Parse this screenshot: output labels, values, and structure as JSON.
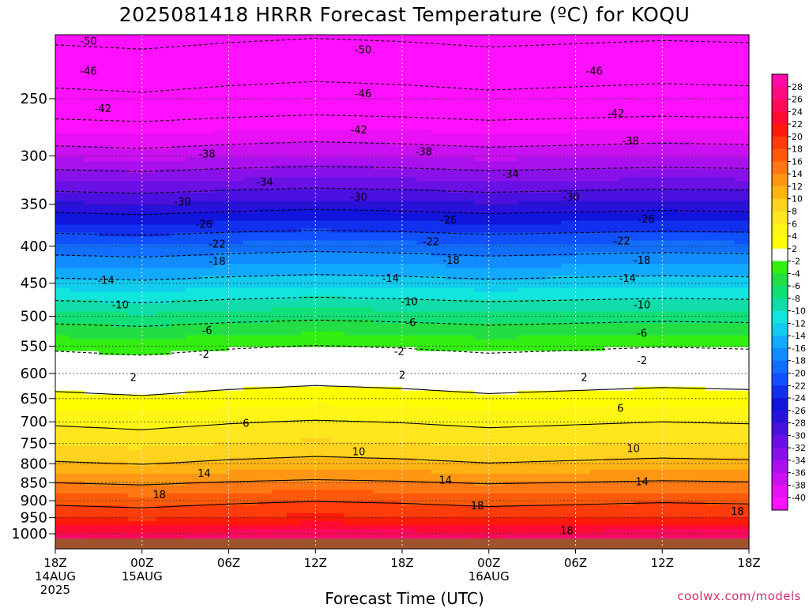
{
  "chart_data": {
    "type": "heatmap",
    "title": "2025081418 HRRR Forecast Temperature (ºC) for KOQU",
    "xlabel": "Forecast Time (UTC)",
    "ylabel": "",
    "y_axis": {
      "scale": "log",
      "inverted": true,
      "ticks": [
        250,
        300,
        350,
        400,
        450,
        500,
        550,
        600,
        650,
        700,
        750,
        800,
        850,
        900,
        950,
        1000
      ],
      "range": [
        1025,
        200
      ]
    },
    "x_axis": {
      "range_hours": [
        0,
        48
      ],
      "ticks": [
        {
          "hour": 0,
          "label": "18Z",
          "sub": [
            "14AUG",
            "2025"
          ]
        },
        {
          "hour": 6,
          "label": "00Z",
          "sub": [
            "15AUG"
          ]
        },
        {
          "hour": 12,
          "label": "06Z",
          "sub": []
        },
        {
          "hour": 18,
          "label": "12Z",
          "sub": []
        },
        {
          "hour": 24,
          "label": "18Z",
          "sub": []
        },
        {
          "hour": 30,
          "label": "00Z",
          "sub": [
            "16AUG"
          ]
        },
        {
          "hour": 36,
          "label": "06Z",
          "sub": []
        },
        {
          "hour": 42,
          "label": "12Z",
          "sub": []
        },
        {
          "hour": 48,
          "label": "18Z",
          "sub": []
        }
      ]
    },
    "colorbar": {
      "labels": [
        "28",
        "26",
        "24",
        "22",
        "20",
        "18",
        "16",
        "14",
        "12",
        "10",
        "8",
        "6",
        "4",
        "2",
        "-2",
        "-4",
        "-6",
        "-8",
        "-10",
        "-12",
        "-14",
        "-16",
        "-18",
        "-20",
        "-22",
        "-24",
        "-26",
        "-28",
        "-30",
        "-32",
        "-34",
        "-36",
        "-38",
        "-40"
      ],
      "colors": [
        "#ff0aa8",
        "#ff0a82",
        "#ff0a5a",
        "#ff0a32",
        "#ff1a0a",
        "#ff3c0a",
        "#ff5a0a",
        "#ff7814",
        "#ff9614",
        "#ffb414",
        "#ffd21e",
        "#ffe61e",
        "#fff514",
        "#ffff00",
        "#ffffff",
        "#33ee11",
        "#22dd44",
        "#11e077",
        "#11ddaa",
        "#11e5dd",
        "#11ccee",
        "#11aaff",
        "#118cff",
        "#116eff",
        "#1150ff",
        "#1130ee",
        "#1114dd",
        "#2810dd",
        "#4a10e0",
        "#6a10e5",
        "#8a10ea",
        "#aa10ee",
        "#ca10f2",
        "#ea10f6",
        "#ff10ff"
      ]
    },
    "levels": [
      1000,
      950,
      900,
      850,
      800,
      750,
      700,
      650,
      600,
      550,
      500,
      450,
      400,
      350,
      300,
      250,
      200
    ],
    "temperature_profile_c": [
      24.6,
      19.9,
      17.3,
      14.0,
      10.3,
      7.8,
      5.6,
      2.7,
      0.2,
      -2.5,
      -7.2,
      -13.1,
      -19.5,
      -27.6,
      -36.5,
      -45.0,
      -51.5
    ],
    "time_shift_hours": [
      0,
      6,
      12,
      18,
      24,
      30,
      36,
      42,
      48
    ],
    "time_shift_c": [
      0.0,
      -0.4,
      0.2,
      0.6,
      0.3,
      -0.2,
      0.1,
      0.4,
      0.2
    ],
    "contours": [
      {
        "value": -50,
        "labels": [
          {
            "hour": 2.3,
            "p": 208
          },
          {
            "hour": 21.3,
            "p": 214
          }
        ]
      },
      {
        "value": -46,
        "labels": [
          {
            "hour": 2.3,
            "p": 229
          },
          {
            "hour": 21.3,
            "p": 246
          },
          {
            "hour": 37.3,
            "p": 229
          }
        ]
      },
      {
        "value": -42,
        "labels": [
          {
            "hour": 3.3,
            "p": 258
          },
          {
            "hour": 21.0,
            "p": 276
          },
          {
            "hour": 38.8,
            "p": 262
          }
        ]
      },
      {
        "value": -38,
        "labels": [
          {
            "hour": 10.5,
            "p": 298
          },
          {
            "hour": 25.5,
            "p": 296
          },
          {
            "hour": 39.8,
            "p": 286
          }
        ]
      },
      {
        "value": -34,
        "labels": [
          {
            "hour": 14.5,
            "p": 326
          },
          {
            "hour": 31.5,
            "p": 318
          }
        ]
      },
      {
        "value": -30,
        "labels": [
          {
            "hour": 8.8,
            "p": 347
          },
          {
            "hour": 21.0,
            "p": 342
          },
          {
            "hour": 35.7,
            "p": 342
          }
        ]
      },
      {
        "value": -26,
        "labels": [
          {
            "hour": 10.3,
            "p": 373
          },
          {
            "hour": 27.2,
            "p": 368
          },
          {
            "hour": 40.9,
            "p": 367
          }
        ]
      },
      {
        "value": -22,
        "labels": [
          {
            "hour": 11.2,
            "p": 397
          },
          {
            "hour": 26.0,
            "p": 394
          },
          {
            "hour": 39.2,
            "p": 393
          }
        ]
      },
      {
        "value": -18,
        "labels": [
          {
            "hour": 11.2,
            "p": 420
          },
          {
            "hour": 27.4,
            "p": 418
          },
          {
            "hour": 40.6,
            "p": 418
          }
        ]
      },
      {
        "value": -14,
        "labels": [
          {
            "hour": 3.5,
            "p": 446
          },
          {
            "hour": 23.2,
            "p": 443
          },
          {
            "hour": 39.6,
            "p": 443
          }
        ]
      },
      {
        "value": -10,
        "labels": [
          {
            "hour": 4.5,
            "p": 482
          },
          {
            "hour": 24.5,
            "p": 477
          },
          {
            "hour": 40.6,
            "p": 482
          }
        ]
      },
      {
        "value": -6,
        "labels": [
          {
            "hour": 10.5,
            "p": 523
          },
          {
            "hour": 24.6,
            "p": 510
          },
          {
            "hour": 40.6,
            "p": 528
          }
        ]
      },
      {
        "value": -2,
        "labels": [
          {
            "hour": 10.3,
            "p": 564
          },
          {
            "hour": 23.8,
            "p": 559
          },
          {
            "hour": 40.6,
            "p": 576
          }
        ]
      },
      {
        "value": 2,
        "labels": [
          {
            "hour": 5.4,
            "p": 608
          },
          {
            "hour": 24.0,
            "p": 603
          },
          {
            "hour": 36.6,
            "p": 608
          }
        ]
      },
      {
        "value": 6,
        "labels": [
          {
            "hour": 13.2,
            "p": 703
          },
          {
            "hour": 39.1,
            "p": 670
          }
        ]
      },
      {
        "value": 10,
        "labels": [
          {
            "hour": 21.0,
            "p": 770
          },
          {
            "hour": 40.0,
            "p": 762
          }
        ]
      },
      {
        "value": 14,
        "labels": [
          {
            "hour": 10.3,
            "p": 825
          },
          {
            "hour": 27.0,
            "p": 843
          },
          {
            "hour": 40.6,
            "p": 847
          }
        ]
      },
      {
        "value": 18,
        "labels": [
          {
            "hour": 7.2,
            "p": 883
          },
          {
            "hour": 29.2,
            "p": 915
          },
          {
            "hour": 35.4,
            "p": 990
          },
          {
            "hour": 47.2,
            "p": 931
          }
        ]
      }
    ]
  },
  "page": {
    "credit": "coolwx.com/models"
  }
}
